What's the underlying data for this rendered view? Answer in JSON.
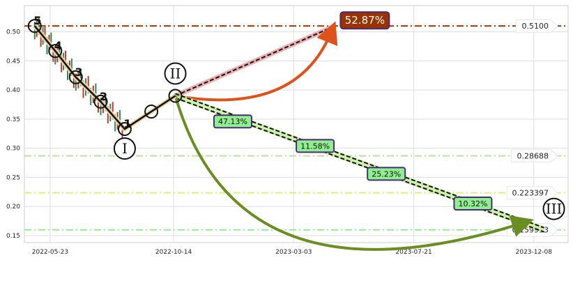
{
  "chart_data": {
    "type": "line",
    "title": "",
    "xlabel": "",
    "ylabel": "",
    "ylim": [
      0.138,
      0.545
    ],
    "xlim": [
      "2022-04-23",
      "2024-01-17"
    ],
    "grid": true,
    "x_ticks": [
      "2022-05-23",
      "2022-10-14",
      "2023-03-03",
      "2023-07-21",
      "2023-12-08"
    ],
    "y_ticks": [
      0.15,
      0.2,
      0.25,
      0.3,
      0.35,
      0.4,
      0.45,
      0.5
    ],
    "y_tick_labels": [
      "0.15",
      "0.20",
      "0.25",
      "0.30",
      "0.35",
      "0.40",
      "0.45",
      "0.50"
    ],
    "levels": [
      {
        "value": 0.51,
        "label": "0.5100",
        "color": "#993300",
        "style": "dashdot"
      },
      {
        "value": 0.28688,
        "label": "0.28688",
        "color": "#b7e39a",
        "style": "dashdot"
      },
      {
        "value": 0.223397,
        "label": "0.223397",
        "color": "#d9f27a",
        "style": "dashdot"
      },
      {
        "value": 0.159913,
        "label": "0.159913",
        "color": "#90ee90",
        "style": "dashdot"
      }
    ],
    "wave": {
      "points": [
        {
          "date": "2022-05-05",
          "price": 0.51
        },
        {
          "date": "2022-05-29",
          "price": 0.467
        },
        {
          "date": "2022-06-22",
          "price": 0.422
        },
        {
          "date": "2022-07-21",
          "price": 0.38
        },
        {
          "date": "2022-08-18",
          "price": 0.333
        },
        {
          "date": "2022-09-18",
          "price": 0.363
        },
        {
          "date": "2022-10-16",
          "price": 0.39
        }
      ],
      "labels": [
        "5",
        "4",
        "3",
        "2",
        "1"
      ],
      "turning_labels": [
        "I",
        "II",
        "III"
      ]
    },
    "projection_up": {
      "from_date": "2022-10-16",
      "from_price": 0.39,
      "to_date": "2023-04-20",
      "to_price": 0.51,
      "label": "52.87%",
      "color": "#993300"
    },
    "projection_down": {
      "from_date": "2022-10-16",
      "from_price": 0.39,
      "to_date": "2023-12-20",
      "to_price": 0.159913,
      "targets": [
        {
          "label": "47.13%",
          "date": "2022-12-22",
          "price": 0.346
        },
        {
          "label": "11.58%",
          "date": "2023-03-28",
          "price": 0.304
        },
        {
          "label": "25.23%",
          "date": "2023-06-19",
          "price": 0.256
        },
        {
          "label": "10.32%",
          "date": "2023-09-28",
          "price": 0.205
        }
      ]
    }
  }
}
